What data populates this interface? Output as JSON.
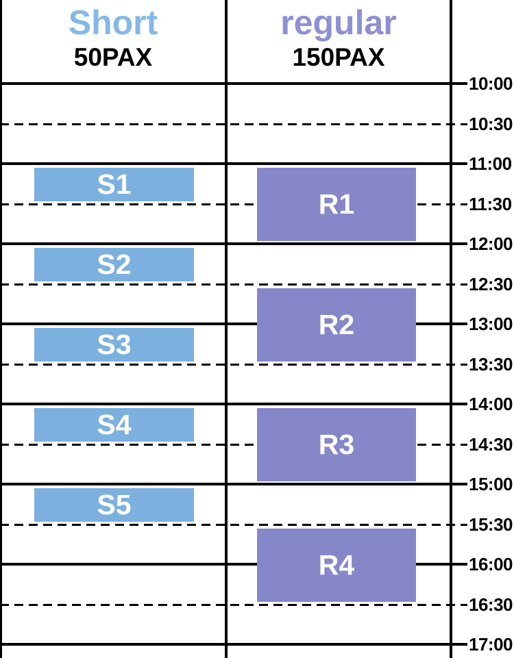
{
  "chart_data": {
    "type": "gantt",
    "title": "",
    "time_axis": {
      "start": "10:00",
      "end": "17:00",
      "solid_line_interval_minutes": 60,
      "dashed_line_interval_minutes": 30,
      "labels": [
        "10:00",
        "10:30",
        "11:00",
        "11:30",
        "12:00",
        "12:30",
        "13:00",
        "13:30",
        "14:00",
        "14:30",
        "15:00",
        "15:30",
        "16:00",
        "16:30",
        "17:00"
      ],
      "grid": "on",
      "labels_position": "right"
    },
    "columns": [
      {
        "id": "short",
        "title": "Short",
        "subtitle": "50PAX",
        "title_color": "#85B8E8",
        "bar_color": "#7CB0DF",
        "sessions": [
          {
            "label": "S1",
            "start": "11:00",
            "end": "11:30"
          },
          {
            "label": "S2",
            "start": "12:00",
            "end": "12:30"
          },
          {
            "label": "S3",
            "start": "13:00",
            "end": "13:30"
          },
          {
            "label": "S4",
            "start": "14:00",
            "end": "14:30"
          },
          {
            "label": "S5",
            "start": "15:00",
            "end": "15:30"
          }
        ]
      },
      {
        "id": "regular",
        "title": "regular",
        "subtitle": "150PAX",
        "title_color": "#8D90D3",
        "bar_color": "#8687C8",
        "sessions": [
          {
            "label": "R1",
            "start": "11:00",
            "end": "12:00"
          },
          {
            "label": "R2",
            "start": "12:30",
            "end": "13:30"
          },
          {
            "label": "R3",
            "start": "14:00",
            "end": "15:00"
          },
          {
            "label": "R4",
            "start": "15:30",
            "end": "16:30"
          }
        ]
      }
    ],
    "colors": {
      "grid_line": "#000000",
      "time_label_text": "#000000",
      "bar_label_text": "#FFFFFF",
      "subtitle_text": "#000000",
      "background": "#FFFFFF"
    }
  }
}
